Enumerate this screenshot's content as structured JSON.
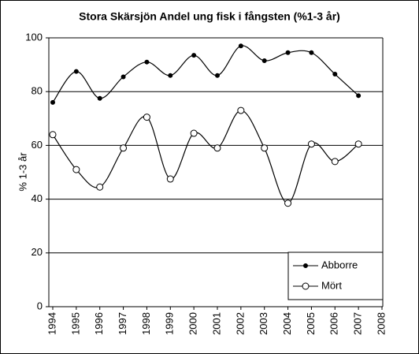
{
  "chart_data": {
    "type": "line",
    "title": "Stora Skärsjön Andel ung fisk i fångsten (%1-3 år)",
    "y_label": "% 1-3 år",
    "categories": [
      "1994",
      "1995",
      "1996",
      "1997",
      "1998",
      "1999",
      "2000",
      "2001",
      "2002",
      "2003",
      "2004",
      "2005",
      "2006",
      "2007",
      "2008"
    ],
    "series": [
      {
        "name": "Abborre",
        "color": "#000000",
        "marker": "filled",
        "values": [
          76,
          87.5,
          77.5,
          85.5,
          91,
          86,
          93.5,
          86,
          97,
          91.5,
          94.5,
          94.5,
          86.5,
          78.5,
          null
        ]
      },
      {
        "name": "Mört",
        "color": "#000000",
        "marker": "open",
        "values": [
          64,
          51,
          44.5,
          59,
          70.5,
          47.5,
          64.5,
          59,
          73,
          59,
          38.5,
          60.5,
          54,
          60.5,
          null
        ]
      }
    ],
    "ylim": [
      0,
      100
    ],
    "yticks": [
      0,
      20,
      40,
      60,
      80,
      100
    ],
    "grid": true,
    "legend": "lower right"
  }
}
